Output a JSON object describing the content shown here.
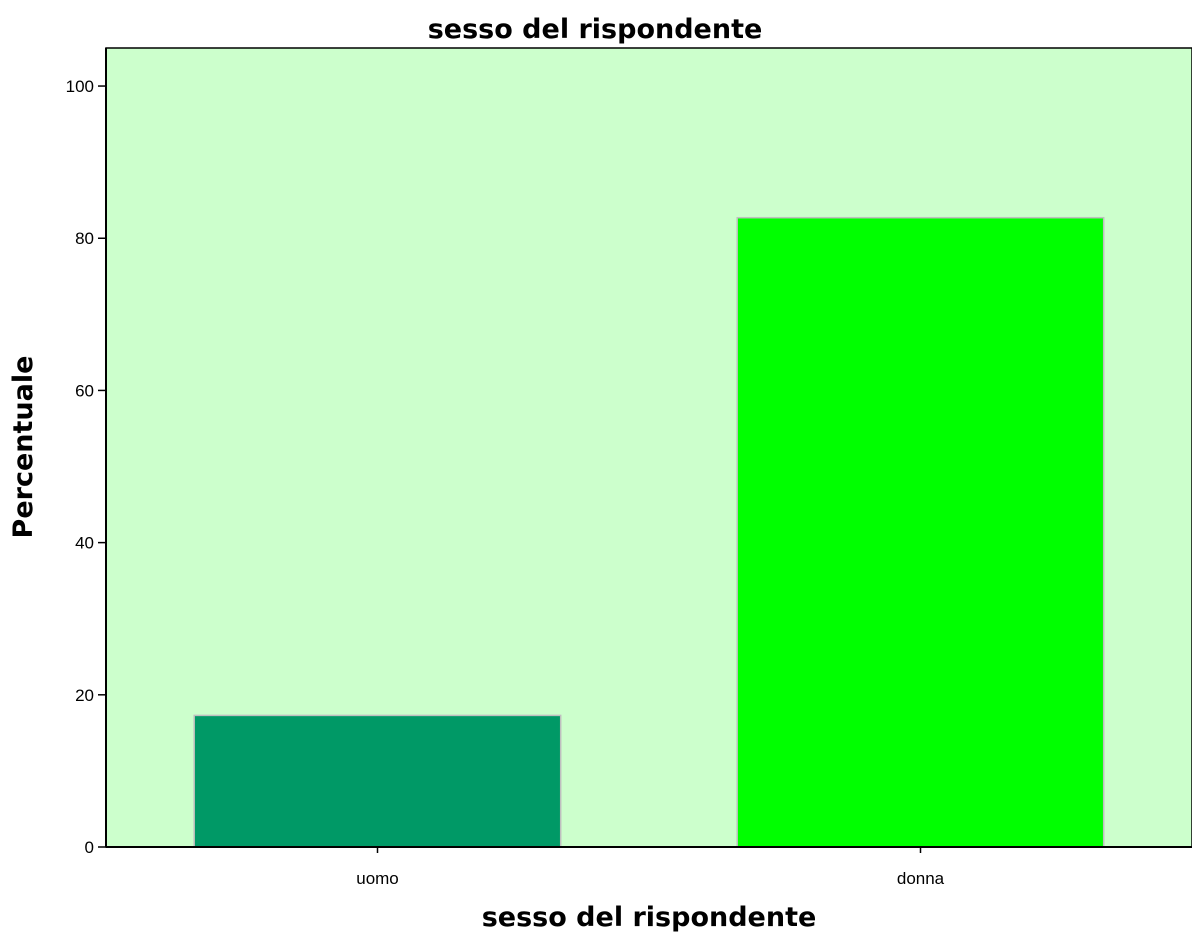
{
  "chart_data": {
    "type": "bar",
    "title": "sesso del rispondente",
    "xlabel": "sesso del rispondente",
    "ylabel": "Percentuale",
    "categories": [
      "uomo",
      "donna"
    ],
    "values": [
      17.3,
      82.7
    ],
    "ylim": [
      0,
      105
    ],
    "yticks": [
      0,
      20,
      40,
      60,
      80,
      100
    ],
    "grid": false,
    "legend": "none",
    "bar_colors": [
      "#009966",
      "#00ff00"
    ],
    "plot_background": "#ccffcc",
    "bar_edge_color": "#bfbfbf"
  }
}
